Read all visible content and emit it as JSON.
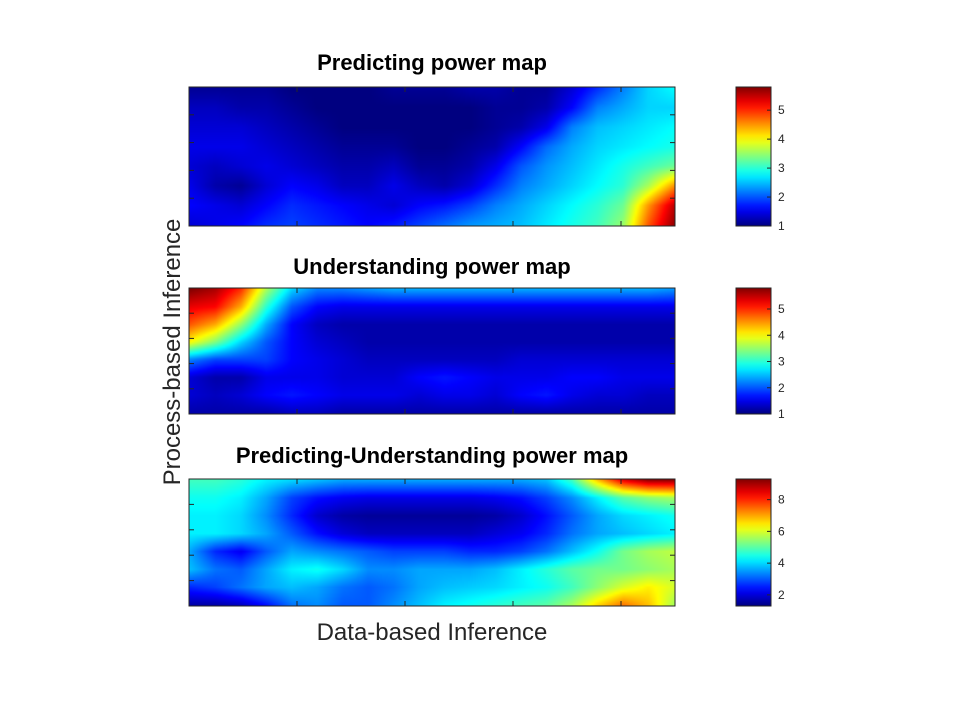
{
  "figure": {
    "xlabel": "Data-based Inference",
    "ylabel": "Process-based Inference",
    "colormap": "jet"
  },
  "chart_data": [
    {
      "type": "heatmap",
      "title": "Predicting power map",
      "colorbar": {
        "range": [
          1,
          5.8
        ],
        "ticks": [
          "1",
          "2",
          "3",
          "4",
          "5"
        ]
      },
      "grid": [
        [
          1.1,
          1.1,
          1.1,
          1.1,
          1.0,
          1.0,
          1.0,
          1.0,
          1.1,
          1.1,
          1.1,
          1.2,
          1.2,
          1.1,
          1.1,
          1.4,
          1.8,
          2.2,
          2.6,
          2.8
        ],
        [
          1.3,
          1.3,
          1.2,
          1.2,
          1.1,
          1.0,
          1.0,
          1.0,
          1.0,
          1.0,
          1.0,
          1.0,
          1.1,
          1.1,
          1.2,
          1.6,
          2.2,
          2.4,
          2.6,
          2.6
        ],
        [
          1.4,
          1.4,
          1.4,
          1.3,
          1.2,
          1.1,
          1.0,
          1.0,
          1.0,
          1.0,
          1.0,
          1.0,
          1.1,
          1.2,
          1.5,
          2.2,
          2.5,
          2.6,
          2.7,
          2.8
        ],
        [
          1.5,
          1.5,
          1.5,
          1.4,
          1.3,
          1.2,
          1.1,
          1.1,
          1.1,
          1.0,
          1.0,
          1.1,
          1.2,
          1.6,
          2.1,
          2.4,
          2.6,
          2.7,
          2.8,
          2.9
        ],
        [
          1.4,
          1.3,
          1.4,
          1.5,
          1.4,
          1.3,
          1.2,
          1.2,
          1.3,
          1.1,
          1.1,
          1.2,
          1.5,
          2.0,
          2.3,
          2.5,
          2.7,
          2.9,
          3.1,
          3.3
        ],
        [
          1.5,
          1.2,
          1.1,
          1.4,
          1.6,
          1.5,
          1.3,
          1.3,
          1.5,
          1.3,
          1.2,
          1.4,
          1.8,
          2.2,
          2.4,
          2.6,
          2.8,
          3.0,
          3.6,
          4.5
        ],
        [
          1.6,
          1.5,
          1.4,
          1.6,
          1.8,
          1.7,
          1.6,
          1.5,
          1.4,
          1.6,
          1.7,
          1.9,
          2.2,
          2.4,
          2.6,
          2.8,
          3.0,
          3.3,
          4.5,
          5.5
        ],
        [
          1.4,
          1.5,
          1.6,
          1.8,
          1.9,
          1.8,
          1.7,
          1.6,
          1.7,
          1.9,
          2.1,
          2.3,
          2.4,
          2.5,
          2.7,
          2.9,
          3.1,
          3.5,
          4.8,
          5.7
        ]
      ]
    },
    {
      "type": "heatmap",
      "title": "Understanding power map",
      "colorbar": {
        "range": [
          1,
          5.8
        ],
        "ticks": [
          "1",
          "2",
          "3",
          "4",
          "5"
        ]
      },
      "grid": [
        [
          5.8,
          5.6,
          5.0,
          3.6,
          2.6,
          2.2,
          2.2,
          2.3,
          2.4,
          2.4,
          2.4,
          2.4,
          2.4,
          2.4,
          2.4,
          2.4,
          2.4,
          2.4,
          2.4,
          2.3
        ],
        [
          5.3,
          5.2,
          4.4,
          3.0,
          2.0,
          1.6,
          1.5,
          1.5,
          1.5,
          1.5,
          1.5,
          1.5,
          1.5,
          1.5,
          1.5,
          1.5,
          1.5,
          1.5,
          1.5,
          1.5
        ],
        [
          4.8,
          4.4,
          3.5,
          2.4,
          1.6,
          1.3,
          1.2,
          1.2,
          1.2,
          1.2,
          1.2,
          1.2,
          1.2,
          1.2,
          1.2,
          1.2,
          1.2,
          1.2,
          1.2,
          1.2
        ],
        [
          4.0,
          3.4,
          2.6,
          2.0,
          1.6,
          1.4,
          1.3,
          1.2,
          1.2,
          1.2,
          1.2,
          1.2,
          1.2,
          1.2,
          1.2,
          1.2,
          1.2,
          1.2,
          1.2,
          1.2
        ],
        [
          2.2,
          1.9,
          1.9,
          1.9,
          1.6,
          1.5,
          1.4,
          1.3,
          1.3,
          1.3,
          1.3,
          1.3,
          1.3,
          1.4,
          1.4,
          1.4,
          1.4,
          1.4,
          1.4,
          1.4
        ],
        [
          1.4,
          1.2,
          1.2,
          1.5,
          1.5,
          1.5,
          1.4,
          1.4,
          1.4,
          1.6,
          1.7,
          1.6,
          1.5,
          1.5,
          1.5,
          1.6,
          1.6,
          1.5,
          1.5,
          1.5
        ],
        [
          1.4,
          1.3,
          1.4,
          1.6,
          1.7,
          1.6,
          1.5,
          1.5,
          1.5,
          1.4,
          1.5,
          1.5,
          1.4,
          1.6,
          1.7,
          1.5,
          1.4,
          1.4,
          1.3,
          1.3
        ],
        [
          1.2,
          1.2,
          1.2,
          1.2,
          1.3,
          1.3,
          1.2,
          1.2,
          1.2,
          1.2,
          1.2,
          1.2,
          1.2,
          1.2,
          1.2,
          1.2,
          1.2,
          1.2,
          1.2,
          1.2
        ]
      ]
    },
    {
      "type": "heatmap",
      "title": "Predicting-Understanding power map",
      "colorbar": {
        "range": [
          1.3,
          9.3
        ],
        "ticks": [
          "2",
          "4",
          "6",
          "8"
        ]
      },
      "grid": [
        [
          4.8,
          4.8,
          4.6,
          4.2,
          4.0,
          3.8,
          3.6,
          3.6,
          3.6,
          3.6,
          3.6,
          3.6,
          3.6,
          3.6,
          3.8,
          4.8,
          6.8,
          8.5,
          9.2,
          9.2
        ],
        [
          4.4,
          4.4,
          4.2,
          3.6,
          2.8,
          2.4,
          2.2,
          2.1,
          2.1,
          2.1,
          2.1,
          2.1,
          2.2,
          2.4,
          2.8,
          3.4,
          4.2,
          5.0,
          5.4,
          5.6
        ],
        [
          4.2,
          4.2,
          4.0,
          3.4,
          2.6,
          1.9,
          1.6,
          1.5,
          1.5,
          1.5,
          1.5,
          1.5,
          1.6,
          1.9,
          2.4,
          3.0,
          3.6,
          4.0,
          4.2,
          4.4
        ],
        [
          4.2,
          4.2,
          4.0,
          3.6,
          3.0,
          2.4,
          2.0,
          1.8,
          1.8,
          1.8,
          1.8,
          1.8,
          2.0,
          2.2,
          2.6,
          3.2,
          3.6,
          3.8,
          4.0,
          4.2
        ],
        [
          3.6,
          2.6,
          2.2,
          3.0,
          3.6,
          3.4,
          3.2,
          3.0,
          2.8,
          2.8,
          2.8,
          2.6,
          2.6,
          2.8,
          3.2,
          3.8,
          4.4,
          5.2,
          5.6,
          5.8
        ],
        [
          3.8,
          3.2,
          3.0,
          3.6,
          4.2,
          4.4,
          4.0,
          3.4,
          3.4,
          3.6,
          3.6,
          3.6,
          3.8,
          4.2,
          4.6,
          5.0,
          5.2,
          5.2,
          5.4,
          5.6
        ],
        [
          2.6,
          2.8,
          3.2,
          3.6,
          3.8,
          3.6,
          3.2,
          3.0,
          3.2,
          3.6,
          3.8,
          3.9,
          4.0,
          4.2,
          4.4,
          4.8,
          5.4,
          6.0,
          6.4,
          6.0
        ],
        [
          1.6,
          1.6,
          1.8,
          2.4,
          3.2,
          3.4,
          3.0,
          3.0,
          3.4,
          3.8,
          4.2,
          4.4,
          4.6,
          4.8,
          5.0,
          5.6,
          6.6,
          7.4,
          6.8,
          5.6
        ]
      ]
    }
  ]
}
